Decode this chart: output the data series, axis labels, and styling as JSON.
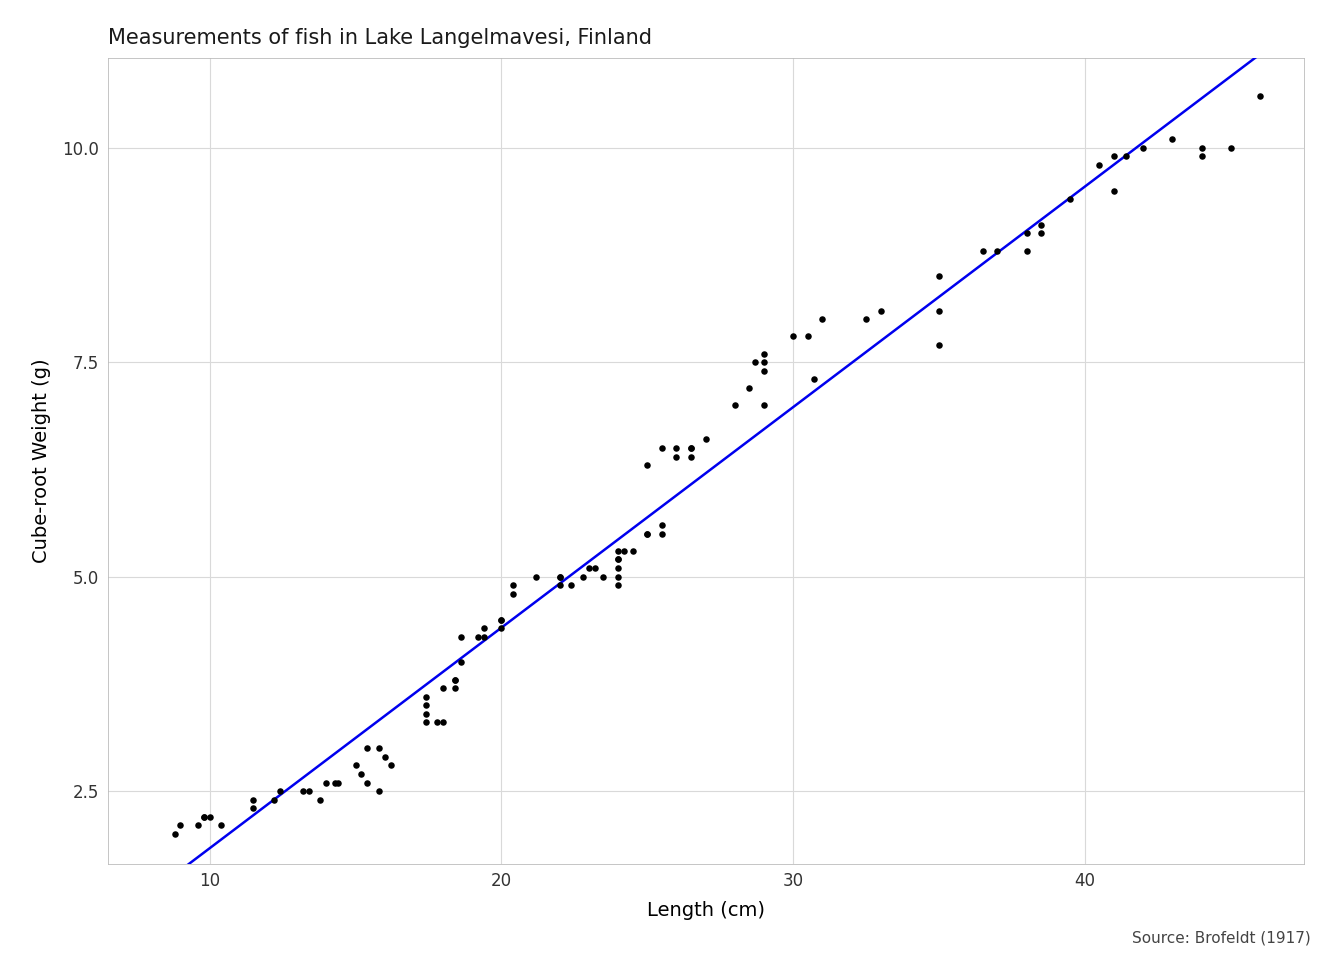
{
  "title": "Measurements of fish in Lake Langelmavesi, Finland",
  "xlabel": "Length (cm)",
  "ylabel": "Cube-root Weight (g)",
  "source": "Source: Brofeldt (1917)",
  "background_color": "#ffffff",
  "panel_color": "#ffffff",
  "grid_color": "#d9d9d9",
  "scatter_color": "#000000",
  "line_color": "#0000ee",
  "xlim": [
    6.5,
    47.5
  ],
  "ylim": [
    1.65,
    11.05
  ],
  "xticks": [
    10,
    20,
    30,
    40
  ],
  "yticks": [
    2.5,
    5.0,
    7.5,
    10.0
  ],
  "length": [
    8.8,
    9.0,
    9.6,
    9.8,
    9.8,
    10.0,
    10.4,
    11.5,
    11.5,
    12.2,
    12.4,
    13.2,
    13.4,
    13.8,
    14.0,
    14.3,
    14.4,
    15.0,
    15.2,
    15.4,
    15.4,
    15.8,
    15.8,
    16.0,
    16.2,
    17.4,
    17.4,
    17.4,
    17.4,
    17.8,
    18.0,
    18.0,
    18.4,
    18.4,
    18.4,
    18.6,
    18.6,
    19.2,
    19.4,
    19.4,
    20.0,
    20.0,
    20.0,
    20.4,
    20.4,
    21.2,
    22.0,
    22.0,
    22.0,
    22.4,
    22.8,
    23.0,
    23.2,
    23.5,
    24.0,
    24.0,
    24.0,
    24.0,
    24.0,
    24.0,
    24.2,
    24.5,
    25.0,
    25.0,
    25.0,
    25.5,
    25.5,
    25.5,
    26.0,
    26.0,
    26.5,
    26.5,
    26.5,
    27.0,
    28.0,
    28.5,
    28.7,
    29.0,
    29.0,
    29.0,
    29.0,
    30.0,
    30.5,
    30.7,
    31.0,
    32.5,
    33.0,
    35.0,
    35.0,
    35.0,
    36.5,
    37.0,
    38.0,
    38.0,
    38.5,
    38.5,
    39.5,
    40.5,
    41.0,
    41.0,
    41.4,
    42.0,
    43.0,
    44.0,
    44.0,
    45.0,
    46.0
  ],
  "weight_cbrt": [
    2.0,
    2.1,
    2.1,
    2.2,
    2.2,
    2.2,
    2.1,
    2.3,
    2.4,
    2.4,
    2.5,
    2.5,
    2.5,
    2.4,
    2.6,
    2.6,
    2.6,
    2.8,
    2.7,
    2.6,
    3.0,
    3.0,
    2.5,
    2.9,
    2.8,
    3.6,
    3.5,
    3.4,
    3.3,
    3.3,
    3.3,
    3.7,
    3.7,
    3.8,
    3.8,
    4.0,
    4.3,
    4.3,
    4.3,
    4.4,
    4.5,
    4.4,
    4.5,
    4.8,
    4.9,
    5.0,
    5.0,
    5.0,
    4.9,
    4.9,
    5.0,
    5.1,
    5.1,
    5.0,
    5.2,
    5.3,
    5.1,
    5.2,
    5.0,
    4.9,
    5.3,
    5.3,
    5.5,
    5.5,
    6.3,
    5.6,
    5.5,
    6.5,
    6.5,
    6.4,
    6.4,
    6.5,
    6.5,
    6.6,
    7.0,
    7.2,
    7.5,
    7.6,
    7.4,
    7.5,
    7.0,
    7.8,
    7.8,
    7.3,
    8.0,
    8.0,
    8.1,
    8.1,
    8.5,
    7.7,
    8.8,
    8.8,
    9.0,
    8.8,
    9.1,
    9.0,
    9.4,
    9.8,
    9.5,
    9.9,
    9.9,
    10.0,
    10.1,
    9.9,
    10.0,
    10.0,
    10.6
  ],
  "title_fontsize": 15,
  "label_fontsize": 14,
  "tick_fontsize": 12,
  "source_fontsize": 11,
  "marker_size": 22,
  "line_width": 1.8
}
